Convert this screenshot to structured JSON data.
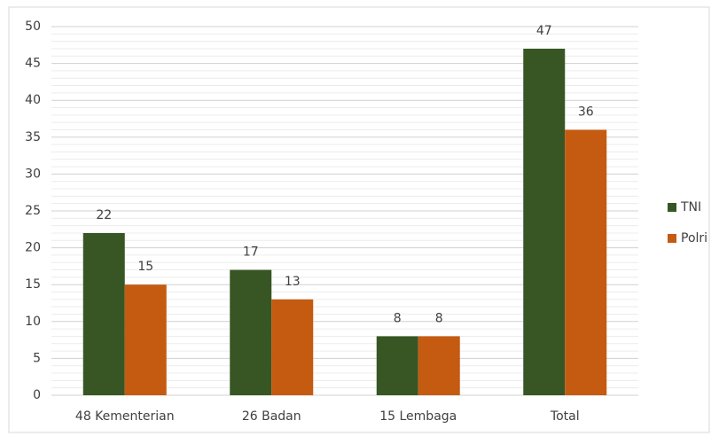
{
  "chart_data": {
    "type": "bar",
    "categories": [
      "48 Kementerian",
      "26 Badan",
      "15 Lembaga",
      "Total"
    ],
    "series": [
      {
        "name": "TNI",
        "color": "#375623",
        "values": [
          22,
          17,
          8,
          47
        ]
      },
      {
        "name": "Polri",
        "color": "#c55a11",
        "values": [
          15,
          13,
          8,
          36
        ]
      }
    ],
    "ylim": [
      0,
      50
    ],
    "yticks": [
      0,
      5,
      10,
      15,
      20,
      25,
      30,
      35,
      40,
      45,
      50
    ],
    "grid": true,
    "minor_grid": true,
    "legend": "right",
    "data_labels": true
  }
}
